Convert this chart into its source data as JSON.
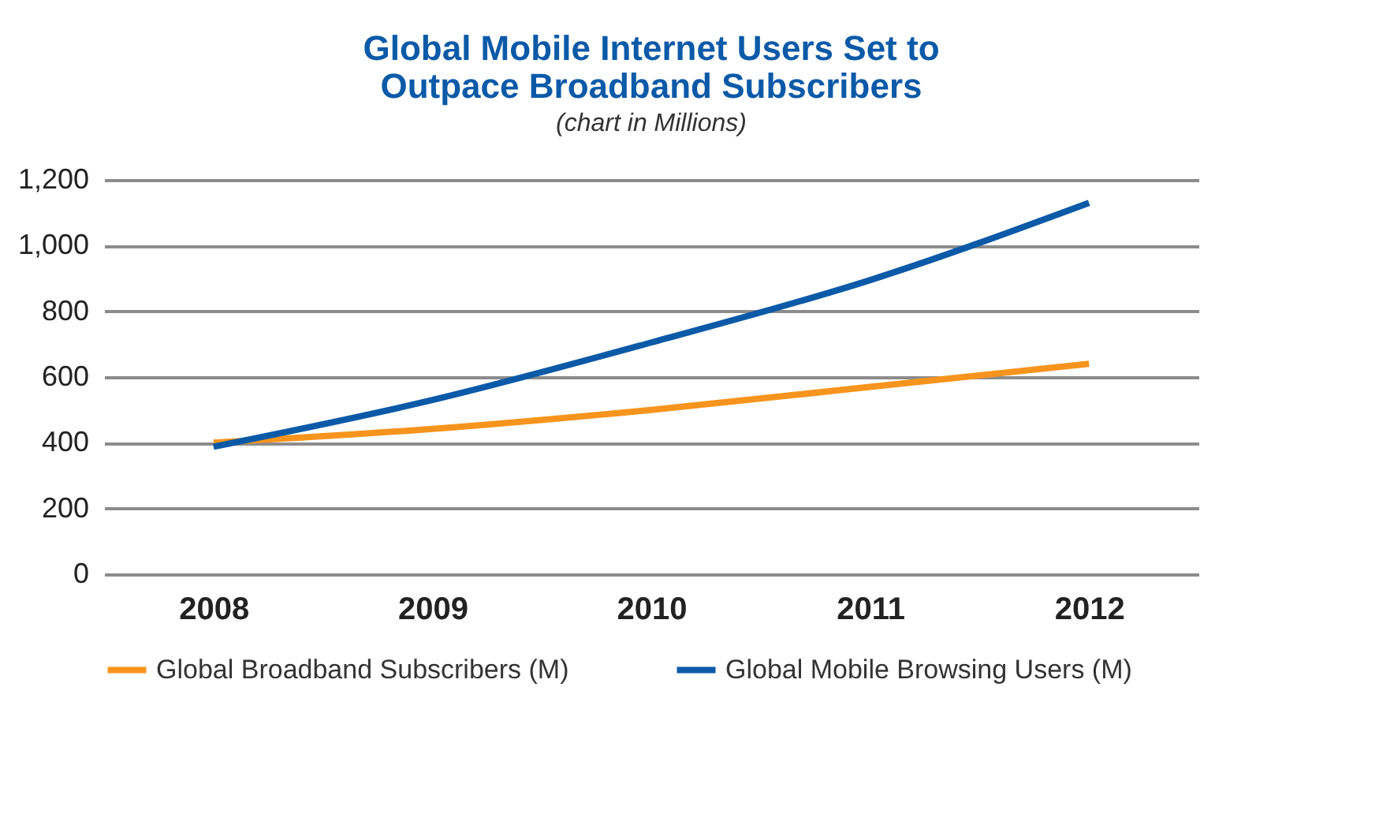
{
  "chart_data": {
    "type": "line",
    "title": "Global Mobile Internet Users Set to Outpace Broadband Subscribers",
    "subtitle": "(chart in Millions)",
    "categories": [
      "2008",
      "2009",
      "2010",
      "2011",
      "2012"
    ],
    "series": [
      {
        "name": "Global Broadband Subscribers (M)",
        "color": "#f7941d",
        "values": [
          400,
          442,
          500,
          570,
          640
        ]
      },
      {
        "name": "Global Mobile Browsing Users (M)",
        "color": "#0b5aa8",
        "values": [
          388,
          530,
          705,
          895,
          1130
        ]
      }
    ],
    "ylim": [
      0,
      1200
    ],
    "yticks": [
      0,
      200,
      400,
      600,
      800,
      {
        "value": 1000,
        "label": "1,000"
      },
      {
        "value": 1200,
        "label": "1,200"
      }
    ],
    "grid": "y",
    "legend": "bottom",
    "marker": "none",
    "line_style": "solid"
  }
}
